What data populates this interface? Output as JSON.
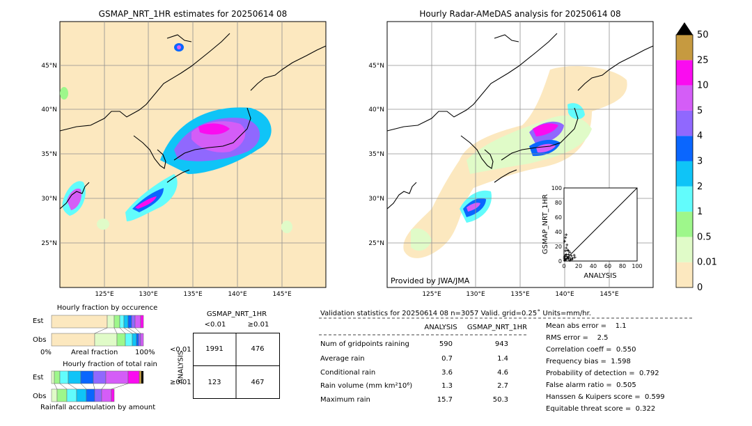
{
  "left_map": {
    "title": "GSMAP_NRT_1HR estimates for 20250614 08",
    "lat_labels": [
      "45°N",
      "40°N",
      "35°N",
      "30°N",
      "25°N"
    ],
    "lon_labels": [
      "125°E",
      "130°E",
      "135°E",
      "140°E",
      "145°E"
    ]
  },
  "right_map": {
    "title": "Hourly Radar-AMeDAS analysis for 20250614 08",
    "lat_labels": [
      "45°N",
      "40°N",
      "35°N",
      "30°N",
      "25°N"
    ],
    "lon_labels": [
      "125°E",
      "130°E",
      "135°E",
      "140°E",
      "145°E"
    ],
    "credit": "Provided by JWA/JMA"
  },
  "colors": {
    "land_bg": "#fce8bf",
    "c001": "#fce8bf",
    "c01": "#e0fbc8",
    "c05": "#9ef78b",
    "c1": "#62fcfc",
    "c2": "#0fc4f7",
    "c3": "#0a66fe",
    "c4": "#9068fe",
    "c5": "#d45df7",
    "c10": "#fa0cf0",
    "c25": "#c69a40",
    "c50": "#000000"
  },
  "colorbar": {
    "labels": [
      "0",
      "0.01",
      "0.5",
      "1",
      "2",
      "3",
      "4",
      "5",
      "10",
      "25",
      "50"
    ]
  },
  "scatter": {
    "xlabel": "ANALYSIS",
    "ylabel": "GSMAP_NRT_1HR",
    "ticks": [
      "0",
      "20",
      "40",
      "60",
      "80",
      "100"
    ],
    "points": [
      [
        1,
        1
      ],
      [
        2,
        3
      ],
      [
        3,
        2
      ],
      [
        4,
        6
      ],
      [
        5,
        4
      ],
      [
        6,
        9
      ],
      [
        7,
        5
      ],
      [
        8,
        12
      ],
      [
        9,
        3
      ],
      [
        10,
        7
      ],
      [
        2,
        14
      ],
      [
        3,
        18
      ],
      [
        4,
        22
      ],
      [
        1,
        27
      ],
      [
        2,
        32
      ],
      [
        5,
        15
      ],
      [
        6,
        3
      ],
      [
        12,
        4
      ],
      [
        14,
        8
      ],
      [
        11,
        2
      ],
      [
        15,
        5
      ],
      [
        3,
        9
      ],
      [
        1,
        6
      ],
      [
        8,
        1
      ],
      [
        6,
        14
      ],
      [
        3,
        36
      ],
      [
        0.5,
        4
      ],
      [
        2,
        8
      ]
    ]
  },
  "fraction_occurrence": {
    "title": "Hourly fraction by occurence",
    "row1": "Est",
    "row2": "Obs",
    "x_left": "0%",
    "x_mid": "Areal fraction",
    "x_right": "100%"
  },
  "fraction_total": {
    "title": "Hourly fraction of total rain",
    "row1": "Est",
    "row2": "Obs",
    "xlabel": "Rainfall accumulation by amount"
  },
  "contingency": {
    "title": "GSMAP_NRT_1HR",
    "col1": "<0.01",
    "col2": "≥0.01",
    "row_axis": "ANALYSIS",
    "row1": "<0.01",
    "row2": "≥0.01",
    "cells": [
      "1991",
      "476",
      "123",
      "467"
    ]
  },
  "validation": {
    "header": "Validation statistics for 20250614 08  n=3057 Valid. grid=0.25˚ Units=mm/hr.",
    "col_analysis": "ANALYSIS",
    "col_gsmap": "GSMAP_NRT_1HR",
    "rows": [
      {
        "label": "Num of gridpoints raining",
        "a": "590",
        "g": "943"
      },
      {
        "label": "Average rain",
        "a": "0.7",
        "g": "1.4"
      },
      {
        "label": "Conditional rain",
        "a": "3.6",
        "g": "4.6"
      },
      {
        "label": "Rain volume (mm km²10⁶)",
        "a": "1.3",
        "g": "2.7"
      },
      {
        "label": "Maximum rain",
        "a": "15.7",
        "g": "50.3"
      }
    ],
    "scores": [
      "Mean abs error =    1.1",
      "RMS error =    2.5",
      "Correlation coeff =  0.550",
      "Frequency bias =  1.598",
      "Probability of detection =  0.792",
      "False alarm ratio =  0.505",
      "Hanssen & Kuipers score =  0.599",
      "Equitable threat score =  0.322"
    ]
  }
}
